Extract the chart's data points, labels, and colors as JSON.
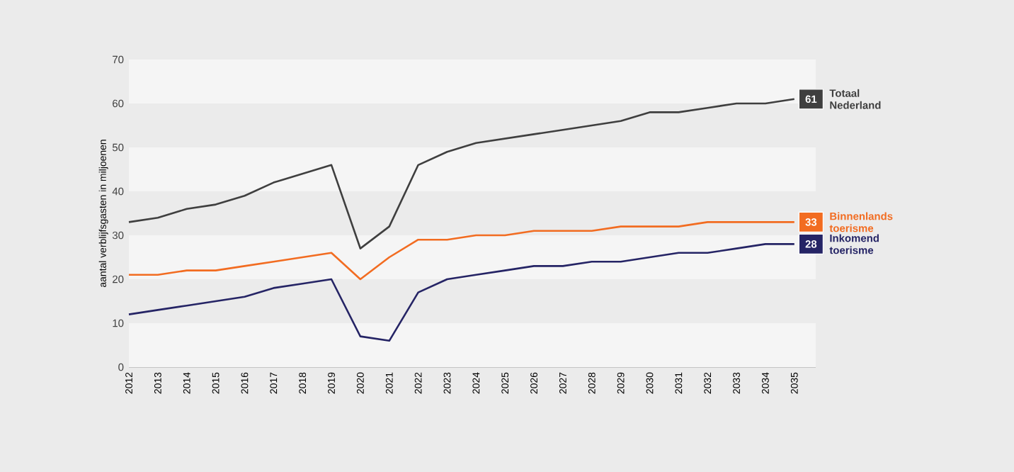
{
  "chart_data": {
    "type": "line",
    "ylabel": "aantal verblijfsgasten in miljoenen",
    "categories": [
      "2012",
      "2013",
      "2014",
      "2015",
      "2016",
      "2017",
      "2018",
      "2019",
      "2020",
      "2021",
      "2022",
      "2023",
      "2024",
      "2025",
      "2026",
      "2027",
      "2028",
      "2029",
      "2030",
      "2031",
      "2032",
      "2033",
      "2034",
      "2035"
    ],
    "series": [
      {
        "name": "Totaal Nederland",
        "color": "#3f3f3f",
        "values": [
          33,
          34,
          36,
          37,
          39,
          42,
          44,
          46,
          27,
          32,
          46,
          49,
          51,
          52,
          53,
          54,
          55,
          56,
          58,
          58,
          59,
          60,
          60,
          61
        ],
        "value_labels": [
          null,
          null,
          null,
          null,
          null,
          null,
          null,
          null,
          null,
          null,
          null,
          null,
          null,
          null,
          null,
          null,
          null,
          null,
          null,
          null,
          null,
          null,
          null,
          "61"
        ]
      },
      {
        "name": "Binnenlands toerisme",
        "color": "#f26c21",
        "values": [
          21,
          21,
          22,
          22,
          23,
          24,
          25,
          26,
          20,
          25,
          29,
          29,
          30,
          30,
          31,
          31,
          31,
          32,
          32,
          32,
          33,
          33,
          33,
          33
        ],
        "value_labels": [
          null,
          null,
          null,
          null,
          null,
          null,
          null,
          null,
          null,
          null,
          null,
          null,
          null,
          null,
          null,
          null,
          null,
          null,
          null,
          null,
          null,
          null,
          null,
          "33"
        ]
      },
      {
        "name": "Inkomend toerisme",
        "color": "#252465",
        "values": [
          12,
          13,
          14,
          15,
          16,
          18,
          19,
          20,
          7,
          6,
          17,
          20,
          21,
          22,
          23,
          23,
          24,
          24,
          25,
          26,
          26,
          27,
          28,
          28
        ],
        "value_labels": [
          null,
          null,
          null,
          null,
          null,
          null,
          null,
          null,
          null,
          null,
          null,
          null,
          null,
          null,
          null,
          null,
          null,
          null,
          null,
          null,
          null,
          null,
          null,
          "28"
        ]
      }
    ],
    "ylim": [
      0,
      70
    ],
    "yticks": [
      0,
      10,
      20,
      30,
      40,
      50,
      60,
      70
    ],
    "legend": "right",
    "line_style": "solid"
  }
}
